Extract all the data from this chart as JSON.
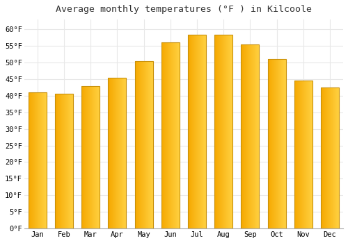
{
  "title": "Average monthly temperatures (°F ) in Kilcoole",
  "months": [
    "Jan",
    "Feb",
    "Mar",
    "Apr",
    "May",
    "Jun",
    "Jul",
    "Aug",
    "Sep",
    "Oct",
    "Nov",
    "Dec"
  ],
  "values": [
    41.0,
    40.5,
    43.0,
    45.5,
    50.5,
    56.0,
    58.5,
    58.5,
    55.5,
    51.0,
    44.5,
    42.5
  ],
  "bar_color_left": "#F5A800",
  "bar_color_right": "#FFD040",
  "bar_color_mid": "#FFBE18",
  "bar_edge_color": "#C8900A",
  "background_color": "#FFFFFF",
  "plot_bg_color": "#FFFFFF",
  "ylim": [
    0,
    63
  ],
  "yticks": [
    0,
    5,
    10,
    15,
    20,
    25,
    30,
    35,
    40,
    45,
    50,
    55,
    60
  ],
  "ytick_labels": [
    "0°F",
    "5°F",
    "10°F",
    "15°F",
    "20°F",
    "25°F",
    "30°F",
    "35°F",
    "40°F",
    "45°F",
    "50°F",
    "55°F",
    "60°F"
  ],
  "title_fontsize": 9.5,
  "tick_fontsize": 7.5,
  "grid_color": "#E8E8E8",
  "bar_width": 0.68
}
